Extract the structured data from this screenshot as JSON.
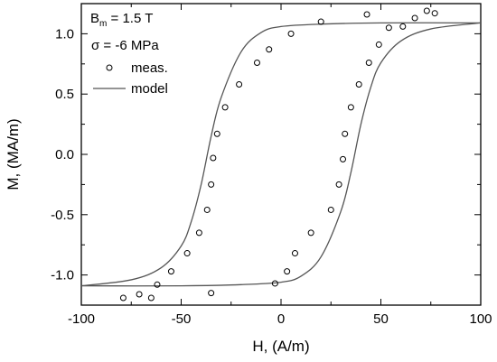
{
  "chart_data": {
    "type": "scatter",
    "xlabel": "H, (A/m)",
    "ylabel": "M, (MA/m)",
    "xlim": [
      -100,
      100
    ],
    "ylim": [
      -1.25,
      1.25
    ],
    "x_ticks": [
      -100,
      -50,
      0,
      50,
      100
    ],
    "x_tick_labels": [
      "-100",
      "-50",
      "0",
      "50",
      "100"
    ],
    "y_ticks": [
      -1.0,
      -0.5,
      0.0,
      0.5,
      1.0
    ],
    "y_tick_labels": [
      "-1.0",
      "-0.5",
      "0.0",
      "0.5",
      "1.0"
    ],
    "grid": false,
    "annotations": {
      "bm_symbol": "B",
      "bm_subscript": "m",
      "bm_value": " = 1.5 T",
      "sigma": "σ = -6 MPa"
    },
    "legend_position": "top-left",
    "series": [
      {
        "name": "meas.",
        "style": "open-circle",
        "color": "#000000",
        "points": [
          [
            -79,
            -1.19
          ],
          [
            -71,
            -1.16
          ],
          [
            -65,
            -1.19
          ],
          [
            -62,
            -1.08
          ],
          [
            -55,
            -0.97
          ],
          [
            -47,
            -0.82
          ],
          [
            -41,
            -0.65
          ],
          [
            -37,
            -0.46
          ],
          [
            -35,
            -0.25
          ],
          [
            -34,
            -0.03
          ],
          [
            -32,
            0.17
          ],
          [
            -28,
            0.39
          ],
          [
            -21,
            0.58
          ],
          [
            -12,
            0.76
          ],
          [
            -6,
            0.87
          ],
          [
            5,
            1.0
          ],
          [
            20,
            1.1
          ],
          [
            43,
            1.16
          ],
          [
            54,
            1.05
          ],
          [
            61,
            1.06
          ],
          [
            67,
            1.13
          ],
          [
            73,
            1.19
          ],
          [
            77,
            1.17
          ],
          [
            -35,
            -1.15
          ],
          [
            -3,
            -1.07
          ],
          [
            3,
            -0.97
          ],
          [
            7,
            -0.82
          ],
          [
            15,
            -0.65
          ],
          [
            25,
            -0.46
          ],
          [
            29,
            -0.25
          ],
          [
            31,
            -0.04
          ],
          [
            32,
            0.17
          ],
          [
            35,
            0.39
          ],
          [
            39,
            0.58
          ],
          [
            44,
            0.76
          ],
          [
            49,
            0.91
          ]
        ]
      },
      {
        "name": "model",
        "style": "line",
        "color": "#555555",
        "branches": [
          {
            "x": [
              -100,
              -75,
              -60,
              -50,
              -45,
              -40,
              -35,
              -30,
              -20,
              -10,
              0,
              20,
              50,
              100
            ],
            "y": [
              -1.09,
              -1.04,
              -0.94,
              -0.76,
              -0.56,
              -0.25,
              0.15,
              0.47,
              0.85,
              1.01,
              1.06,
              1.08,
              1.09,
              1.09
            ]
          },
          {
            "x": [
              -100,
              -50,
              -20,
              0,
              10,
              20,
              30,
              35,
              40,
              45,
              50,
              60,
              75,
              100
            ],
            "y": [
              -1.09,
              -1.09,
              -1.08,
              -1.06,
              -1.01,
              -0.85,
              -0.47,
              -0.15,
              0.25,
              0.56,
              0.76,
              0.94,
              1.04,
              1.09
            ]
          }
        ]
      }
    ]
  }
}
